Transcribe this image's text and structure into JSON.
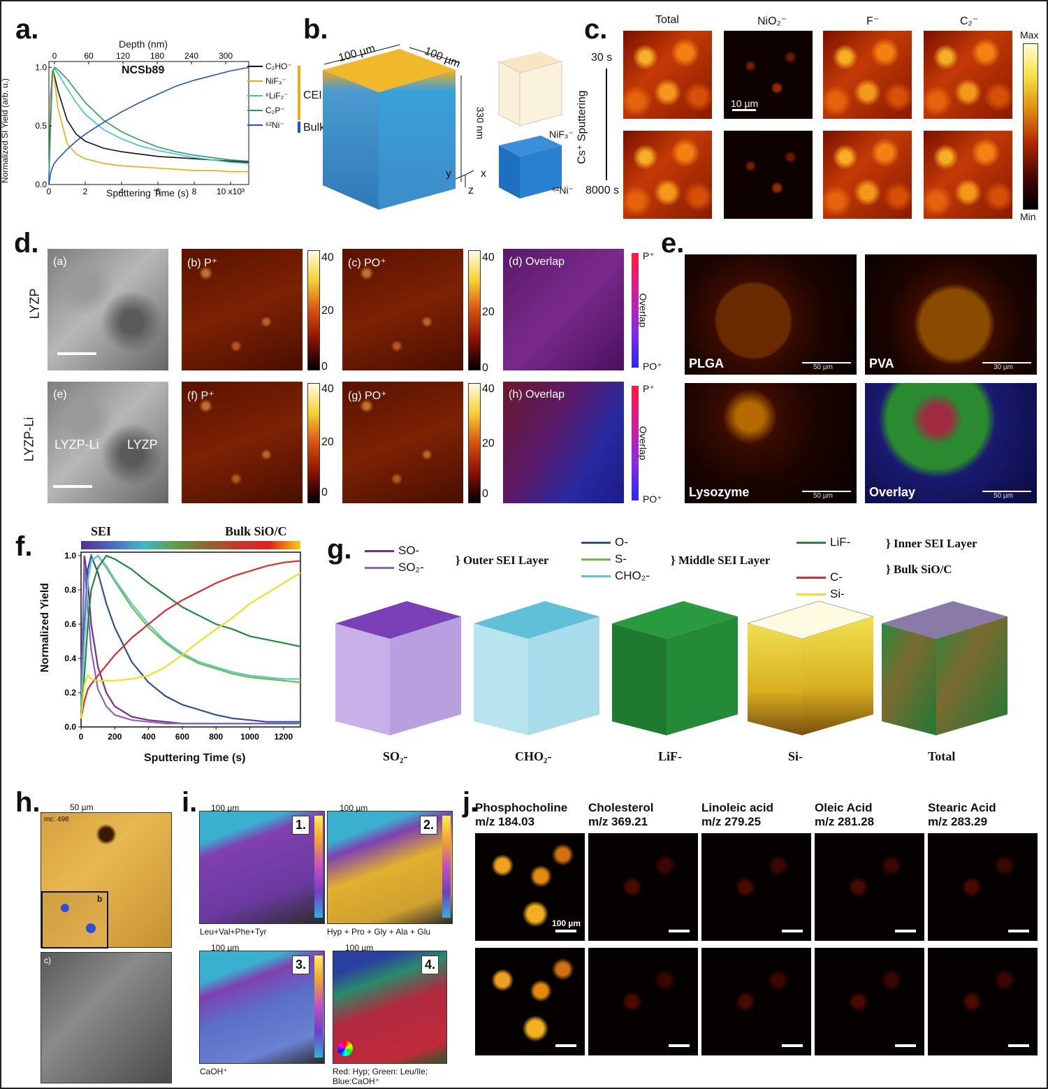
{
  "panels": {
    "a": {
      "label": "a.",
      "top_axis_title": "Depth (nm)",
      "top_ticks": [
        "0",
        "60",
        "120",
        "180",
        "240",
        "300"
      ],
      "sample": "NCSb89",
      "ylabel": "Normalized SI Yield (arb. u.)",
      "xlabel": "Sputtering Time (s)",
      "y_ticks": [
        "0.0",
        "0.5",
        "1.0"
      ],
      "x_ticks": [
        "0",
        "2",
        "4",
        "6",
        "8",
        "10 x10³"
      ],
      "legend": [
        {
          "name": "C₂HO⁻",
          "color": "#111111"
        },
        {
          "name": "NiF₃⁻",
          "color": "#f3a712"
        },
        {
          "name": "⁶LiF₂⁻",
          "color": "#35c4de"
        },
        {
          "name": "C₂P⁻",
          "color": "#2b9a5c"
        },
        {
          "name": "⁶²Ni⁻",
          "color": "#1f4fd8"
        }
      ],
      "group_cei": "CEI",
      "group_bulk": "Bulk"
    },
    "b": {
      "label": "b.",
      "dim1": "100 µm",
      "dim2": "100 µm",
      "dim3": "330 nm",
      "axes": {
        "y": "y",
        "x": "x",
        "z": "z"
      },
      "small1": "NiF₃⁻",
      "small2": "⁶²Ni⁻"
    },
    "c": {
      "label": "c.",
      "cols": [
        "Total",
        "NiO₂⁻",
        "F⁻",
        "C₂⁻"
      ],
      "time_top": "30 s",
      "time_bottom": "8000 s",
      "process": "Cs⁺ Sputtering",
      "scalebar": "10 µm",
      "cb_max": "Max",
      "cb_min": "Min"
    },
    "d": {
      "label": "d.",
      "row1": "LYZP",
      "row2": "LYZP-Li",
      "tiles_top": [
        "(a)",
        "(b) P⁺",
        "(c) PO⁺",
        "(d) Overlap"
      ],
      "tiles_bottom": [
        "(e)",
        "(f) P⁺",
        "(g) PO⁺",
        "(h) Overlap"
      ],
      "region1": "LYZP-Li",
      "region2": "LYZP",
      "cb_ticks": [
        "40",
        "20",
        "0"
      ],
      "ov_top": "P⁺",
      "ov_mid": "Overlap",
      "ov_bottom": "PO⁺"
    },
    "e": {
      "label": "e.",
      "tiles": [
        "PLGA",
        "PVA",
        "Lysozyme",
        "Overlay"
      ],
      "scales": [
        "50 µm",
        "30 µm",
        "50 µm",
        "50 µm"
      ]
    },
    "f": {
      "label": "f.",
      "bar_left": "SEI",
      "bar_right": "Bulk SiO/C",
      "ylabel": "Normalized Yield",
      "xlabel": "Sputtering Time (s)"
    },
    "g": {
      "label": "g.",
      "groups": [
        {
          "name": "Outer SEI Layer",
          "items": [
            {
              "name": "SO-",
              "color": "#7b2d8e"
            },
            {
              "name": "SO₂-",
              "color": "#8a63c0"
            }
          ]
        },
        {
          "name": "Middle SEI Layer",
          "items": [
            {
              "name": "O-",
              "color": "#2e4ea0"
            },
            {
              "name": "S-",
              "color": "#6abf3a"
            },
            {
              "name": "CHO₂-",
              "color": "#5cc6d8"
            }
          ]
        },
        {
          "name": "Inner SEI Layer",
          "items": [
            {
              "name": "LiF-",
              "color": "#1f8a3a"
            }
          ]
        },
        {
          "name": "Bulk SiO/C",
          "items": [
            {
              "name": "C-",
              "color": "#e02a2a"
            },
            {
              "name": "Si-",
              "color": "#f0e020"
            }
          ]
        }
      ],
      "cube_labels": [
        "SO₂-",
        "CHO₂-",
        "LiF-",
        "Si-",
        "Total"
      ]
    },
    "h": {
      "label": "h.",
      "scale": "50 µm",
      "mc": "mc: 498",
      "inset": "b",
      "sem": "c)"
    },
    "i": {
      "label": "i.",
      "scales": [
        "100 µm",
        "100 µm",
        "100 µm",
        "100 µm"
      ],
      "nums": [
        "1.",
        "2.",
        "3.",
        "4."
      ],
      "captions": [
        "Leu+Val+Phe+Tyr",
        "Hyp + Pro + Gly + Ala + Glu",
        "CaOH⁺",
        "Red: Hyp; Green: Leu/Ile; Blue:CaOH⁺"
      ]
    },
    "j": {
      "label": "j.",
      "cols": [
        {
          "name": "Phosphocholine",
          "mz": "m/z 184.03"
        },
        {
          "name": "Cholesterol",
          "mz": "m/z 369.21"
        },
        {
          "name": "Linoleic acid",
          "mz": "m/z 279.25"
        },
        {
          "name": "Oleic Acid",
          "mz": "m/z 281.28"
        },
        {
          "name": "Stearic Acid",
          "mz": "m/z 283.29"
        }
      ],
      "scale": "100 µm"
    }
  },
  "chart_data": [
    {
      "type": "line",
      "panel": "a",
      "title": "NCSb89",
      "xlabel": "Sputtering Time (s)",
      "ylabel": "Normalized SI Yield (arb. u.)",
      "x_multiplier": "x10³",
      "xlim": [
        0,
        11
      ],
      "ylim": [
        0,
        1.05
      ],
      "x": [
        0,
        0.1,
        0.2,
        0.3,
        0.5,
        1,
        1.5,
        2,
        3,
        4,
        5,
        6,
        7,
        8,
        9,
        10,
        11
      ],
      "series": [
        {
          "name": "C₂HO⁻",
          "values": [
            0.05,
            0.75,
            0.98,
            0.93,
            0.8,
            0.55,
            0.43,
            0.37,
            0.31,
            0.28,
            0.26,
            0.24,
            0.23,
            0.22,
            0.21,
            0.2,
            0.19
          ]
        },
        {
          "name": "NiF₃⁻",
          "values": [
            0.05,
            0.7,
            0.98,
            0.9,
            0.65,
            0.35,
            0.26,
            0.22,
            0.18,
            0.16,
            0.15,
            0.14,
            0.13,
            0.12,
            0.12,
            0.11,
            0.11
          ]
        },
        {
          "name": "⁶LiF₂⁻",
          "values": [
            0.05,
            0.6,
            0.97,
            0.99,
            0.95,
            0.82,
            0.7,
            0.6,
            0.47,
            0.39,
            0.33,
            0.29,
            0.26,
            0.23,
            0.21,
            0.19,
            0.18
          ]
        },
        {
          "name": "C₂P⁻",
          "values": [
            0.05,
            0.55,
            0.95,
            1.0,
            0.98,
            0.9,
            0.8,
            0.7,
            0.55,
            0.45,
            0.38,
            0.32,
            0.28,
            0.25,
            0.23,
            0.21,
            0.2
          ]
        },
        {
          "name": "⁶²Ni⁻",
          "values": [
            0.0,
            0.1,
            0.15,
            0.18,
            0.22,
            0.3,
            0.37,
            0.43,
            0.53,
            0.62,
            0.7,
            0.77,
            0.84,
            0.89,
            0.93,
            0.97,
            1.0
          ]
        }
      ]
    },
    {
      "type": "line",
      "panel": "f",
      "xlabel": "Sputtering Time (s)",
      "ylabel": "Normalized Yield",
      "xlim": [
        0,
        1300
      ],
      "ylim": [
        0,
        1.0
      ],
      "x_ticks": [
        0,
        200,
        400,
        600,
        800,
        1000,
        1200
      ],
      "y_ticks": [
        0.0,
        0.2,
        0.4,
        0.6,
        0.8,
        1.0
      ],
      "x": [
        0,
        20,
        40,
        60,
        100,
        150,
        200,
        300,
        400,
        500,
        600,
        700,
        800,
        900,
        1000,
        1100,
        1200,
        1300
      ],
      "series": [
        {
          "name": "SO-",
          "values": [
            0.2,
            1.0,
            0.85,
            0.6,
            0.35,
            0.2,
            0.12,
            0.06,
            0.04,
            0.03,
            0.02,
            0.02,
            0.02,
            0.02,
            0.02,
            0.02,
            0.02,
            0.02
          ]
        },
        {
          "name": "SO₂-",
          "values": [
            0.2,
            0.95,
            0.7,
            0.45,
            0.22,
            0.12,
            0.07,
            0.04,
            0.03,
            0.02,
            0.02,
            0.02,
            0.02,
            0.02,
            0.02,
            0.02,
            0.02,
            0.02
          ]
        },
        {
          "name": "O-",
          "values": [
            0.1,
            0.6,
            0.92,
            1.0,
            0.9,
            0.72,
            0.58,
            0.38,
            0.26,
            0.18,
            0.13,
            0.1,
            0.07,
            0.05,
            0.04,
            0.03,
            0.03,
            0.03
          ]
        },
        {
          "name": "S-",
          "values": [
            0.1,
            0.5,
            0.85,
            0.97,
            1.0,
            0.93,
            0.85,
            0.7,
            0.58,
            0.49,
            0.42,
            0.37,
            0.34,
            0.31,
            0.29,
            0.28,
            0.27,
            0.26
          ]
        },
        {
          "name": "CHO₂-",
          "values": [
            0.1,
            0.5,
            0.85,
            0.97,
            1.0,
            0.94,
            0.86,
            0.72,
            0.6,
            0.5,
            0.43,
            0.38,
            0.35,
            0.32,
            0.3,
            0.29,
            0.28,
            0.28
          ]
        },
        {
          "name": "LiF-",
          "values": [
            0.05,
            0.3,
            0.6,
            0.8,
            0.93,
            1.0,
            0.98,
            0.92,
            0.84,
            0.77,
            0.7,
            0.65,
            0.6,
            0.57,
            0.53,
            0.51,
            0.49,
            0.47
          ]
        },
        {
          "name": "C-",
          "values": [
            0.05,
            0.15,
            0.22,
            0.25,
            0.3,
            0.36,
            0.42,
            0.52,
            0.6,
            0.68,
            0.74,
            0.79,
            0.84,
            0.88,
            0.91,
            0.94,
            0.96,
            0.97
          ]
        },
        {
          "name": "Si-",
          "values": [
            0.05,
            0.25,
            0.3,
            0.28,
            0.27,
            0.27,
            0.27,
            0.28,
            0.3,
            0.35,
            0.42,
            0.5,
            0.57,
            0.64,
            0.72,
            0.78,
            0.84,
            0.9
          ]
        }
      ]
    }
  ]
}
